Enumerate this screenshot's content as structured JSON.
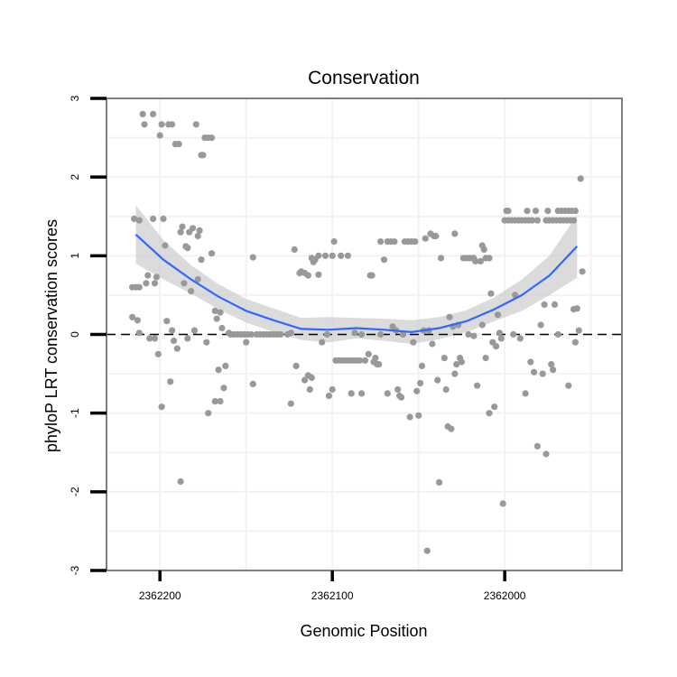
{
  "chart_data": {
    "type": "scatter",
    "title": "Conservation",
    "xlabel": "Genomic Position",
    "ylabel": "phyloP LRT conservation scores",
    "x_reversed": true,
    "xlim": [
      2362231,
      2361932
    ],
    "ylim": [
      -3,
      3
    ],
    "x_ticks": [
      2362200,
      2362100,
      2362000
    ],
    "x_tick_labels": [
      "2362200",
      "2362100",
      "2362000"
    ],
    "y_ticks": [
      -3,
      -2,
      -1,
      0,
      1,
      2,
      3
    ],
    "y_tick_labels": [
      "-3",
      "-2",
      "-1",
      "0",
      "1",
      "2",
      "3"
    ],
    "grid": true,
    "reference_line": {
      "y": 0,
      "style": "dashed"
    },
    "colors": {
      "points": "#999999",
      "smooth": "#3366ff",
      "band": "#cccccc",
      "frame": "#808080"
    },
    "points": [
      [
        2362216,
        0.6
      ],
      [
        2362214,
        0.6
      ],
      [
        2362212,
        0.6
      ],
      [
        2362215,
        1.47
      ],
      [
        2362212,
        1.45
      ],
      [
        2362216,
        0.22
      ],
      [
        2362213,
        0.18
      ],
      [
        2362212,
        0.02
      ],
      [
        2362210,
        2.8
      ],
      [
        2362209,
        2.67
      ],
      [
        2362204,
        2.8
      ],
      [
        2362208,
        0.65
      ],
      [
        2362207,
        0.75
      ],
      [
        2362206,
        -0.05
      ],
      [
        2362204,
        1.47
      ],
      [
        2362203,
        0.65
      ],
      [
        2362203,
        -0.05
      ],
      [
        2362202,
        0.73
      ],
      [
        2362201,
        -0.25
      ],
      [
        2362200,
        2.53
      ],
      [
        2362199,
        2.67
      ],
      [
        2362198,
        1.47
      ],
      [
        2362199,
        -0.92
      ],
      [
        2362197,
        1.13
      ],
      [
        2362196,
        0.17
      ],
      [
        2362195,
        2.67
      ],
      [
        2362193,
        2.67
      ],
      [
        2362194,
        -0.6
      ],
      [
        2362193,
        0.05
      ],
      [
        2362192,
        -0.08
      ],
      [
        2362191,
        2.42
      ],
      [
        2362190,
        -0.18
      ],
      [
        2362189,
        2.42
      ],
      [
        2362188,
        1.3
      ],
      [
        2362187,
        1.37
      ],
      [
        2362188,
        -1.87
      ],
      [
        2362186,
        0.65
      ],
      [
        2362185,
        1.12
      ],
      [
        2362184,
        1.1
      ],
      [
        2362184,
        -0.05
      ],
      [
        2362183,
        1.3
      ],
      [
        2362182,
        0.55
      ],
      [
        2362181,
        1.35
      ],
      [
        2362180,
        0.05
      ],
      [
        2362179,
        2.67
      ],
      [
        2362178,
        1.25
      ],
      [
        2362178,
        0.7
      ],
      [
        2362177,
        1.32
      ],
      [
        2362176,
        2.28
      ],
      [
        2362175,
        2.28
      ],
      [
        2362176,
        0.95
      ],
      [
        2362174,
        2.5
      ],
      [
        2362172,
        2.5
      ],
      [
        2362170,
        2.5
      ],
      [
        2362173,
        -0.1
      ],
      [
        2362172,
        -1.0
      ],
      [
        2362170,
        1.03
      ],
      [
        2362168,
        -0.85
      ],
      [
        2362168,
        0.3
      ],
      [
        2362167,
        0.2
      ],
      [
        2362166,
        -0.45
      ],
      [
        2362165,
        0.28
      ],
      [
        2362165,
        -0.85
      ],
      [
        2362164,
        0.08
      ],
      [
        2362163,
        -0.68
      ],
      [
        2362162,
        -0.4
      ],
      [
        2362160,
        0.02
      ],
      [
        2362159,
        0.0
      ],
      [
        2362157,
        0.0
      ],
      [
        2362155,
        0.0
      ],
      [
        2362153,
        0.0
      ],
      [
        2362151,
        0.0
      ],
      [
        2362149,
        0.0
      ],
      [
        2362147,
        0.0
      ],
      [
        2362150,
        -0.1
      ],
      [
        2362146,
        0.98
      ],
      [
        2362146,
        -0.63
      ],
      [
        2362144,
        0.0
      ],
      [
        2362142,
        0.0
      ],
      [
        2362140,
        0.0
      ],
      [
        2362138,
        0.0
      ],
      [
        2362136,
        0.0
      ],
      [
        2362134,
        0.0
      ],
      [
        2362132,
        0.0
      ],
      [
        2362130,
        0.0
      ],
      [
        2362126,
        0.0
      ],
      [
        2362124,
        0.02
      ],
      [
        2362124,
        -0.88
      ],
      [
        2362122,
        1.08
      ],
      [
        2362121,
        -0.4
      ],
      [
        2362119,
        0.78
      ],
      [
        2362118,
        0.8
      ],
      [
        2362116,
        0.78
      ],
      [
        2362116,
        -0.58
      ],
      [
        2362114,
        0.75
      ],
      [
        2362114,
        -0.52
      ],
      [
        2362113,
        -0.7
      ],
      [
        2362112,
        -0.55
      ],
      [
        2362112,
        0.97
      ],
      [
        2362111,
        0.92
      ],
      [
        2362110,
        0.95
      ],
      [
        2362108,
        0.76
      ],
      [
        2362108,
        1.0
      ],
      [
        2362106,
        -0.1
      ],
      [
        2362104,
        1.0
      ],
      [
        2362103,
        0.0
      ],
      [
        2362102,
        -0.78
      ],
      [
        2362100,
        -0.7
      ],
      [
        2362100,
        1.0
      ],
      [
        2362099,
        1.18
      ],
      [
        2362098,
        -0.33
      ],
      [
        2362096,
        -0.33
      ],
      [
        2362095,
        1.0
      ],
      [
        2362094,
        -0.33
      ],
      [
        2362092,
        -0.33
      ],
      [
        2362091,
        1.0
      ],
      [
        2362090,
        -0.33
      ],
      [
        2362088,
        -0.33
      ],
      [
        2362089,
        -0.75
      ],
      [
        2362087,
        0.02
      ],
      [
        2362086,
        -0.33
      ],
      [
        2362084,
        -0.33
      ],
      [
        2362083,
        -0.75
      ],
      [
        2362083,
        0.0
      ],
      [
        2362081,
        -0.33
      ],
      [
        2362079,
        -0.25
      ],
      [
        2362078,
        0.75
      ],
      [
        2362077,
        0.75
      ],
      [
        2362076,
        -0.35
      ],
      [
        2362075,
        -0.3
      ],
      [
        2362074,
        -0.38
      ],
      [
        2362073,
        -0.38
      ],
      [
        2362072,
        0.0
      ],
      [
        2362072,
        1.18
      ],
      [
        2362070,
        0.95
      ],
      [
        2362068,
        1.18
      ],
      [
        2362068,
        -0.75
      ],
      [
        2362066,
        1.18
      ],
      [
        2362065,
        0.1
      ],
      [
        2362064,
        1.18
      ],
      [
        2362063,
        0.05
      ],
      [
        2362062,
        -0.7
      ],
      [
        2362061,
        -0.78
      ],
      [
        2362060,
        -0.8
      ],
      [
        2362059,
        0.0
      ],
      [
        2362058,
        1.18
      ],
      [
        2362056,
        1.18
      ],
      [
        2362055,
        -1.05
      ],
      [
        2362054,
        1.18
      ],
      [
        2362052,
        1.18
      ],
      [
        2362053,
        -0.1
      ],
      [
        2362051,
        -0.72
      ],
      [
        2362050,
        -1.03
      ],
      [
        2362049,
        -0.62
      ],
      [
        2362048,
        -0.4
      ],
      [
        2362047,
        0.05
      ],
      [
        2362046,
        1.22
      ],
      [
        2362045,
        -2.75
      ],
      [
        2362043,
        1.28
      ],
      [
        2362041,
        1.25
      ],
      [
        2362044,
        0.05
      ],
      [
        2362042,
        -0.12
      ],
      [
        2362040,
        1.25
      ],
      [
        2362039,
        -0.58
      ],
      [
        2362038,
        -1.88
      ],
      [
        2362037,
        0.97
      ],
      [
        2362035,
        -0.3
      ],
      [
        2362034,
        -0.7
      ],
      [
        2362033,
        -1.17
      ],
      [
        2362032,
        0.22
      ],
      [
        2362031,
        -1.2
      ],
      [
        2362030,
        0.1
      ],
      [
        2362029,
        -0.5
      ],
      [
        2362029,
        1.28
      ],
      [
        2362028,
        -0.38
      ],
      [
        2362027,
        0.12
      ],
      [
        2362026,
        -0.3
      ],
      [
        2362025,
        -0.35
      ],
      [
        2362024,
        0.97
      ],
      [
        2362022,
        0.97
      ],
      [
        2362021,
        0.0
      ],
      [
        2362020,
        0.97
      ],
      [
        2362018,
        0.97
      ],
      [
        2362018,
        -0.02
      ],
      [
        2362017,
        0.93
      ],
      [
        2362016,
        -0.65
      ],
      [
        2362014,
        0.93
      ],
      [
        2362013,
        0.12
      ],
      [
        2362013,
        1.13
      ],
      [
        2362012,
        1.08
      ],
      [
        2362011,
        -0.3
      ],
      [
        2362011,
        0.97
      ],
      [
        2362009,
        0.97
      ],
      [
        2362009,
        -1.0
      ],
      [
        2362008,
        0.52
      ],
      [
        2362007,
        -0.1
      ],
      [
        2362006,
        -0.92
      ],
      [
        2362005,
        -0.15
      ],
      [
        2362004,
        0.25
      ],
      [
        2362003,
        0.02
      ],
      [
        2362002,
        -0.05
      ],
      [
        2362001,
        -2.15
      ],
      [
        2362000,
        1.45
      ],
      [
        2361999,
        1.57
      ],
      [
        2361998,
        1.57
      ],
      [
        2361998,
        1.45
      ],
      [
        2361996,
        1.45
      ],
      [
        2361995,
        0.0
      ],
      [
        2361994,
        0.5
      ],
      [
        2361994,
        1.45
      ],
      [
        2361992,
        1.45
      ],
      [
        2361991,
        -0.05
      ],
      [
        2361990,
        1.45
      ],
      [
        2361988,
        1.45
      ],
      [
        2361988,
        -0.75
      ],
      [
        2361987,
        1.57
      ],
      [
        2361986,
        1.45
      ],
      [
        2361985,
        -0.35
      ],
      [
        2361984,
        1.45
      ],
      [
        2361983,
        -0.48
      ],
      [
        2361982,
        1.57
      ],
      [
        2361981,
        1.45
      ],
      [
        2361981,
        -1.42
      ],
      [
        2361979,
        0.12
      ],
      [
        2361978,
        -0.5
      ],
      [
        2361977,
        0.38
      ],
      [
        2361976,
        1.45
      ],
      [
        2361976,
        -1.52
      ],
      [
        2361975,
        1.57
      ],
      [
        2361974,
        1.45
      ],
      [
        2361973,
        -0.38
      ],
      [
        2361972,
        1.45
      ],
      [
        2361972,
        -0.45
      ],
      [
        2361971,
        0.38
      ],
      [
        2361970,
        1.45
      ],
      [
        2361969,
        1.57
      ],
      [
        2361969,
        0.0
      ],
      [
        2361968,
        1.45
      ],
      [
        2361967,
        1.57
      ],
      [
        2361966,
        1.45
      ],
      [
        2361965,
        1.57
      ],
      [
        2361964,
        1.45
      ],
      [
        2361963,
        1.57
      ],
      [
        2361963,
        -0.65
      ],
      [
        2361962,
        1.45
      ],
      [
        2361961,
        1.57
      ],
      [
        2361960,
        1.45
      ],
      [
        2361960,
        0.32
      ],
      [
        2361959,
        -0.1
      ],
      [
        2361959,
        1.57
      ],
      [
        2361958,
        0.33
      ],
      [
        2361957,
        0.05
      ],
      [
        2361956,
        1.98
      ],
      [
        2361955,
        0.8
      ]
    ],
    "smooth": {
      "method": "loess",
      "x": [
        2362214,
        2362198,
        2362182,
        2362166,
        2362150,
        2362134,
        2362118,
        2362102,
        2362086,
        2362070,
        2362054,
        2362038,
        2362022,
        2362006,
        2361990,
        2361974,
        2361958
      ],
      "y": [
        1.27,
        0.95,
        0.7,
        0.48,
        0.3,
        0.18,
        0.07,
        0.06,
        0.08,
        0.06,
        0.03,
        0.08,
        0.17,
        0.32,
        0.5,
        0.75,
        1.12
      ],
      "lower": [
        0.9,
        0.7,
        0.52,
        0.32,
        0.15,
        0.03,
        -0.07,
        -0.1,
        -0.05,
        -0.08,
        -0.12,
        -0.06,
        0.03,
        0.17,
        0.3,
        0.5,
        0.72
      ],
      "upper": [
        1.64,
        1.2,
        0.88,
        0.64,
        0.45,
        0.33,
        0.21,
        0.22,
        0.21,
        0.2,
        0.18,
        0.22,
        0.31,
        0.47,
        0.7,
        1.0,
        1.52
      ]
    }
  }
}
